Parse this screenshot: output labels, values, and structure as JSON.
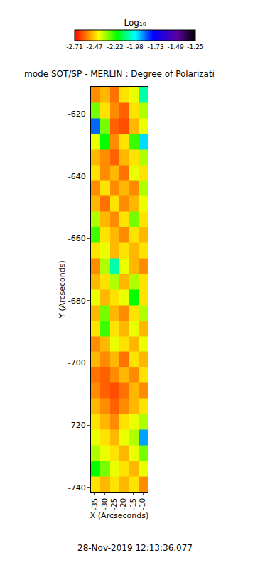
{
  "chart_data": {
    "type": "heatmap",
    "title": "mode SOT/SP - MERLIN : Degree of Polarizati",
    "x_label": "X (Arcseconds)",
    "y_label": "Y (Arcseconds)",
    "annotations": [
      "28-Nov-2019 12:13:36.077"
    ],
    "x": [
      -34.7,
      -29.7,
      -24.8,
      -19.8,
      -14.8,
      -9.9
    ],
    "y": [
      -738.9,
      -733.9,
      -728.9,
      -723.9,
      -718.9,
      -713.9,
      -708.9,
      -703.9,
      -698.9,
      -693.9,
      -688.9,
      -683.9,
      -678.9,
      -673.9,
      -668.9,
      -663.9,
      -658.9,
      -653.9,
      -648.9,
      -643.9,
      -638.9,
      -633.9,
      -628.9,
      -623.9,
      -618.9,
      -613.9
    ],
    "z": [
      [
        -2.45,
        -2.5,
        -2.45,
        -2.5,
        -2.45,
        -2.55
      ],
      [
        -2.2,
        -2.3,
        -2.4,
        -2.45,
        -2.5,
        -2.4
      ],
      [
        -2.35,
        -2.4,
        -2.45,
        -2.5,
        -2.4,
        -2.3
      ],
      [
        -2.4,
        -2.45,
        -2.5,
        -2.4,
        -2.35,
        -1.9
      ],
      [
        -2.45,
        -2.5,
        -2.55,
        -2.45,
        -2.4,
        -2.35
      ],
      [
        -2.5,
        -2.55,
        -2.6,
        -2.55,
        -2.5,
        -2.45
      ],
      [
        -2.55,
        -2.6,
        -2.62,
        -2.58,
        -2.5,
        -2.55
      ],
      [
        -2.58,
        -2.6,
        -2.55,
        -2.5,
        -2.55,
        -2.45
      ],
      [
        -2.5,
        -2.55,
        -2.5,
        -2.58,
        -2.45,
        -2.5
      ],
      [
        -2.55,
        -2.5,
        -2.4,
        -2.45,
        -2.5,
        -2.4
      ],
      [
        -2.45,
        -2.25,
        -2.45,
        -2.5,
        -2.4,
        -2.5
      ],
      [
        -2.5,
        -2.3,
        -2.5,
        -2.55,
        -2.45,
        -2.35
      ],
      [
        -2.4,
        -2.5,
        -2.45,
        -2.4,
        -2.2,
        -2.45
      ],
      [
        -2.5,
        -2.45,
        -2.35,
        -2.5,
        -2.35,
        -2.45
      ],
      [
        -2.55,
        -2.35,
        -2.05,
        -2.4,
        -2.5,
        -2.55
      ],
      [
        -2.45,
        -2.4,
        -2.5,
        -2.45,
        -2.5,
        -2.45
      ],
      [
        -2.25,
        -2.45,
        -2.5,
        -2.55,
        -2.45,
        -2.5
      ],
      [
        -2.35,
        -2.5,
        -2.55,
        -2.45,
        -2.3,
        -2.45
      ],
      [
        -2.5,
        -2.58,
        -2.45,
        -2.55,
        -2.5,
        -2.4
      ],
      [
        -2.55,
        -2.45,
        -2.55,
        -2.5,
        -2.55,
        -2.35
      ],
      [
        -2.45,
        -2.55,
        -2.5,
        -2.58,
        -2.4,
        -2.45
      ],
      [
        -2.5,
        -2.55,
        -2.6,
        -2.5,
        -2.45,
        -2.35
      ],
      [
        -2.4,
        -2.2,
        -2.55,
        -2.45,
        -2.25,
        -1.95
      ],
      [
        -1.85,
        -2.3,
        -2.6,
        -2.62,
        -2.5,
        -2.4
      ],
      [
        -2.3,
        -2.45,
        -2.55,
        -2.6,
        -2.45,
        -2.35
      ],
      [
        -2.55,
        -2.5,
        -2.58,
        -2.45,
        -2.4,
        -2.05
      ]
    ],
    "xlim": [
      -37.2,
      -7.4
    ],
    "xticks": [
      -35,
      -30,
      -25,
      -20,
      -15,
      -10
    ],
    "ylim": [
      -741.4,
      -611.3
    ],
    "yticks": [
      -740,
      -720,
      -700,
      -680,
      -660,
      -640,
      -620
    ],
    "colorbar_title": "Log₁₀",
    "zlim": [
      -2.71,
      -1.25
    ],
    "colorbar_ticks": [
      -2.71,
      -2.47,
      -2.22,
      -1.98,
      -1.73,
      -1.49,
      -1.25
    ],
    "grid": false
  }
}
